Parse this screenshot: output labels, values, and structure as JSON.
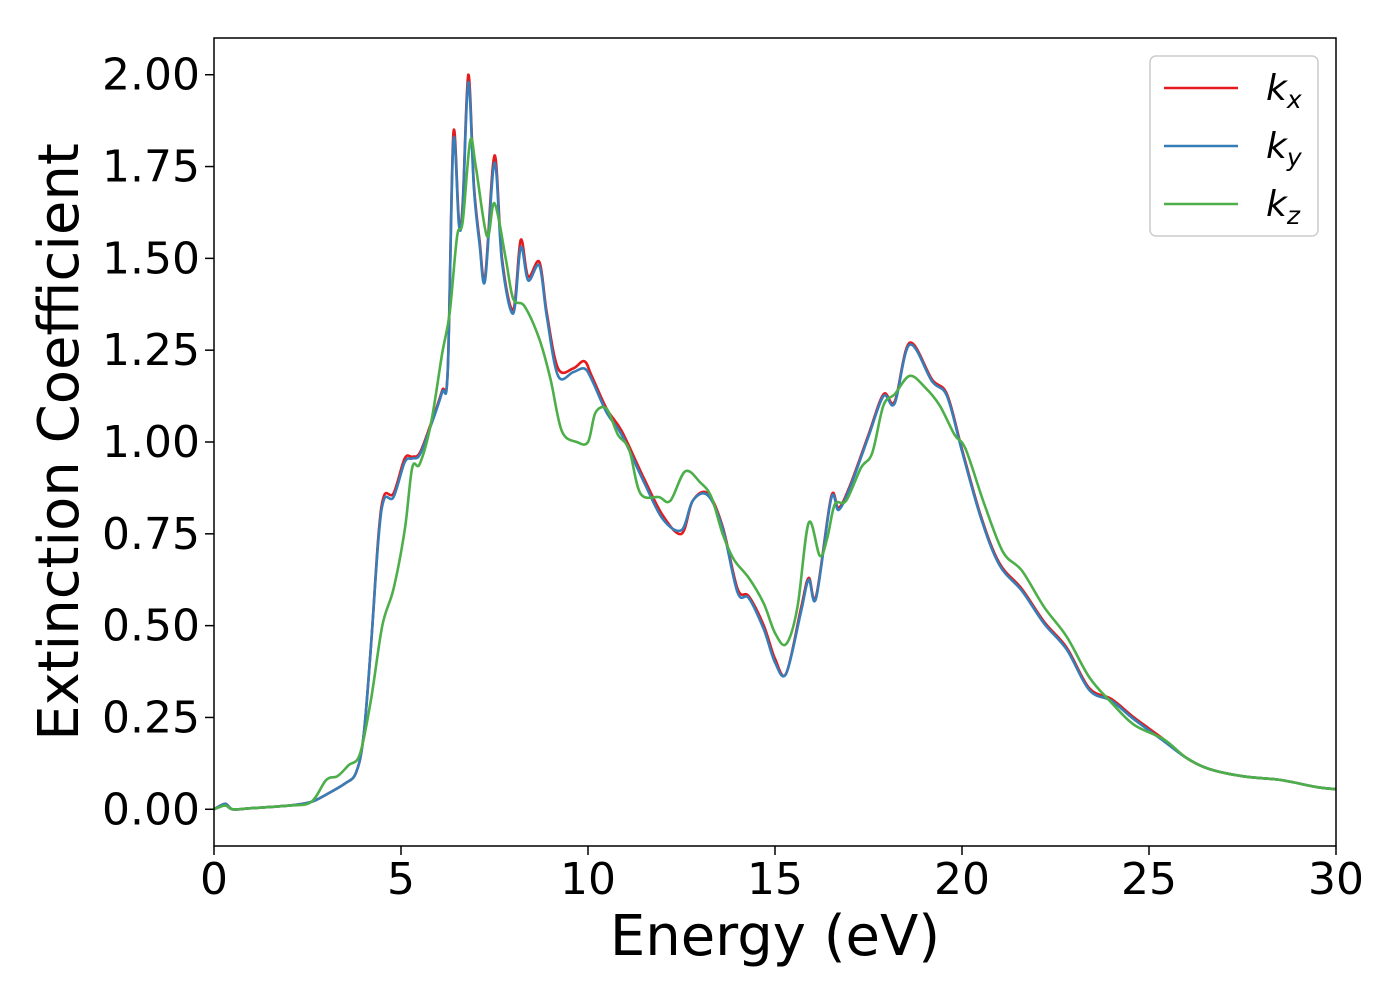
{
  "chart_data": {
    "type": "line",
    "title": "",
    "xlabel": "Energy (eV)",
    "ylabel": "Extinction Coefficient",
    "xlim": [
      0,
      30
    ],
    "ylim": [
      -0.1,
      2.1
    ],
    "xticks": [
      0,
      5,
      10,
      15,
      20,
      25,
      30
    ],
    "xtick_labels": [
      "0",
      "5",
      "10",
      "15",
      "20",
      "25",
      "30"
    ],
    "yticks": [
      0,
      0.25,
      0.5,
      0.75,
      1.0,
      1.25,
      1.5,
      1.75,
      2.0
    ],
    "ytick_labels": [
      "0.00",
      "0.25",
      "0.50",
      "0.75",
      "1.00",
      "1.25",
      "1.50",
      "1.75",
      "2.00"
    ],
    "grid": false,
    "legend_position": "top-right",
    "series": [
      {
        "name": "kx",
        "label_base": "k",
        "label_sub": "x",
        "color": "#e41a1c",
        "points": [
          [
            0,
            0
          ],
          [
            0.3,
            0.015
          ],
          [
            0.5,
            0
          ],
          [
            1,
            0.003
          ],
          [
            2,
            0.01
          ],
          [
            2.6,
            0.02
          ],
          [
            3,
            0.04
          ],
          [
            3.5,
            0.07
          ],
          [
            3.8,
            0.1
          ],
          [
            4.0,
            0.2
          ],
          [
            4.2,
            0.45
          ],
          [
            4.4,
            0.75
          ],
          [
            4.55,
            0.855
          ],
          [
            4.8,
            0.86
          ],
          [
            5.1,
            0.955
          ],
          [
            5.3,
            0.96
          ],
          [
            5.5,
            0.97
          ],
          [
            5.8,
            1.05
          ],
          [
            6.1,
            1.14
          ],
          [
            6.25,
            1.2
          ],
          [
            6.4,
            1.84
          ],
          [
            6.55,
            1.6
          ],
          [
            6.65,
            1.65
          ],
          [
            6.8,
            2.0
          ],
          [
            6.95,
            1.7
          ],
          [
            7.1,
            1.55
          ],
          [
            7.25,
            1.45
          ],
          [
            7.5,
            1.78
          ],
          [
            7.7,
            1.5
          ],
          [
            8.0,
            1.36
          ],
          [
            8.2,
            1.55
          ],
          [
            8.4,
            1.45
          ],
          [
            8.7,
            1.49
          ],
          [
            8.9,
            1.35
          ],
          [
            9.2,
            1.2
          ],
          [
            9.6,
            1.2
          ],
          [
            9.9,
            1.22
          ],
          [
            10.1,
            1.18
          ],
          [
            10.5,
            1.09
          ],
          [
            10.9,
            1.03
          ],
          [
            11.5,
            0.9
          ],
          [
            12.0,
            0.8
          ],
          [
            12.5,
            0.75
          ],
          [
            12.8,
            0.84
          ],
          [
            13.2,
            0.86
          ],
          [
            13.6,
            0.77
          ],
          [
            14.0,
            0.6
          ],
          [
            14.3,
            0.58
          ],
          [
            14.7,
            0.5
          ],
          [
            15.0,
            0.41
          ],
          [
            15.3,
            0.37
          ],
          [
            15.7,
            0.55
          ],
          [
            15.9,
            0.63
          ],
          [
            16.1,
            0.58
          ],
          [
            16.5,
            0.85
          ],
          [
            16.7,
            0.82
          ],
          [
            17.0,
            0.88
          ],
          [
            17.5,
            1.02
          ],
          [
            17.9,
            1.13
          ],
          [
            18.2,
            1.11
          ],
          [
            18.6,
            1.27
          ],
          [
            19.2,
            1.17
          ],
          [
            19.6,
            1.13
          ],
          [
            20.0,
            0.98
          ],
          [
            20.5,
            0.8
          ],
          [
            21.0,
            0.67
          ],
          [
            21.6,
            0.6
          ],
          [
            22.2,
            0.51
          ],
          [
            22.8,
            0.44
          ],
          [
            23.4,
            0.33
          ],
          [
            24.0,
            0.3
          ],
          [
            24.6,
            0.25
          ],
          [
            25.4,
            0.19
          ],
          [
            26.0,
            0.14
          ],
          [
            26.6,
            0.11
          ],
          [
            27.5,
            0.09
          ],
          [
            28.5,
            0.08
          ],
          [
            29.5,
            0.06
          ],
          [
            30,
            0.055
          ]
        ]
      },
      {
        "name": "ky",
        "label_base": "k",
        "label_sub": "y",
        "color": "#377eb8",
        "points": [
          [
            0,
            0
          ],
          [
            0.3,
            0.015
          ],
          [
            0.5,
            0
          ],
          [
            1,
            0.003
          ],
          [
            2,
            0.01
          ],
          [
            2.6,
            0.02
          ],
          [
            3,
            0.04
          ],
          [
            3.5,
            0.07
          ],
          [
            3.8,
            0.1
          ],
          [
            4.0,
            0.2
          ],
          [
            4.2,
            0.45
          ],
          [
            4.4,
            0.74
          ],
          [
            4.55,
            0.845
          ],
          [
            4.8,
            0.85
          ],
          [
            5.1,
            0.945
          ],
          [
            5.3,
            0.955
          ],
          [
            5.5,
            0.965
          ],
          [
            5.8,
            1.045
          ],
          [
            6.1,
            1.135
          ],
          [
            6.25,
            1.195
          ],
          [
            6.4,
            1.82
          ],
          [
            6.55,
            1.59
          ],
          [
            6.65,
            1.64
          ],
          [
            6.8,
            1.98
          ],
          [
            6.95,
            1.69
          ],
          [
            7.1,
            1.54
          ],
          [
            7.25,
            1.44
          ],
          [
            7.5,
            1.76
          ],
          [
            7.7,
            1.49
          ],
          [
            8.0,
            1.35
          ],
          [
            8.2,
            1.53
          ],
          [
            8.4,
            1.44
          ],
          [
            8.7,
            1.48
          ],
          [
            8.9,
            1.34
          ],
          [
            9.2,
            1.18
          ],
          [
            9.6,
            1.19
          ],
          [
            9.9,
            1.2
          ],
          [
            10.1,
            1.17
          ],
          [
            10.5,
            1.08
          ],
          [
            10.9,
            1.02
          ],
          [
            11.5,
            0.89
          ],
          [
            12.0,
            0.79
          ],
          [
            12.5,
            0.76
          ],
          [
            12.8,
            0.84
          ],
          [
            13.2,
            0.855
          ],
          [
            13.6,
            0.765
          ],
          [
            14.0,
            0.59
          ],
          [
            14.3,
            0.575
          ],
          [
            14.7,
            0.49
          ],
          [
            15.0,
            0.4
          ],
          [
            15.3,
            0.37
          ],
          [
            15.7,
            0.54
          ],
          [
            15.9,
            0.625
          ],
          [
            16.1,
            0.575
          ],
          [
            16.5,
            0.845
          ],
          [
            16.7,
            0.815
          ],
          [
            17.0,
            0.875
          ],
          [
            17.5,
            1.015
          ],
          [
            17.9,
            1.125
          ],
          [
            18.2,
            1.105
          ],
          [
            18.6,
            1.265
          ],
          [
            19.2,
            1.165
          ],
          [
            19.6,
            1.125
          ],
          [
            20.0,
            0.975
          ],
          [
            20.5,
            0.795
          ],
          [
            21.0,
            0.665
          ],
          [
            21.6,
            0.595
          ],
          [
            22.2,
            0.505
          ],
          [
            22.8,
            0.435
          ],
          [
            23.4,
            0.325
          ],
          [
            24.0,
            0.295
          ],
          [
            24.6,
            0.245
          ],
          [
            25.4,
            0.185
          ],
          [
            26.0,
            0.14
          ],
          [
            26.6,
            0.11
          ],
          [
            27.5,
            0.09
          ],
          [
            28.5,
            0.08
          ],
          [
            29.5,
            0.06
          ],
          [
            30,
            0.055
          ]
        ]
      },
      {
        "name": "kz",
        "label_base": "k",
        "label_sub": "z",
        "color": "#4daf4a",
        "points": [
          [
            0,
            0
          ],
          [
            0.3,
            0.01
          ],
          [
            0.5,
            0
          ],
          [
            1,
            0.003
          ],
          [
            2,
            0.01
          ],
          [
            2.6,
            0.02
          ],
          [
            3,
            0.08
          ],
          [
            3.3,
            0.09
          ],
          [
            3.6,
            0.12
          ],
          [
            3.9,
            0.15
          ],
          [
            4.2,
            0.3
          ],
          [
            4.5,
            0.5
          ],
          [
            4.8,
            0.6
          ],
          [
            5.1,
            0.76
          ],
          [
            5.3,
            0.93
          ],
          [
            5.5,
            0.94
          ],
          [
            5.8,
            1.05
          ],
          [
            6.1,
            1.24
          ],
          [
            6.3,
            1.35
          ],
          [
            6.5,
            1.56
          ],
          [
            6.65,
            1.6
          ],
          [
            6.85,
            1.82
          ],
          [
            7.0,
            1.75
          ],
          [
            7.3,
            1.56
          ],
          [
            7.5,
            1.65
          ],
          [
            7.8,
            1.5
          ],
          [
            8.0,
            1.39
          ],
          [
            8.3,
            1.37
          ],
          [
            8.7,
            1.28
          ],
          [
            9.0,
            1.17
          ],
          [
            9.3,
            1.03
          ],
          [
            9.7,
            1.0
          ],
          [
            10.0,
            1.0
          ],
          [
            10.2,
            1.08
          ],
          [
            10.5,
            1.09
          ],
          [
            10.8,
            1.02
          ],
          [
            11.1,
            0.98
          ],
          [
            11.4,
            0.86
          ],
          [
            11.9,
            0.85
          ],
          [
            12.2,
            0.84
          ],
          [
            12.6,
            0.92
          ],
          [
            13.0,
            0.89
          ],
          [
            13.3,
            0.85
          ],
          [
            13.6,
            0.75
          ],
          [
            13.9,
            0.68
          ],
          [
            14.3,
            0.63
          ],
          [
            14.7,
            0.56
          ],
          [
            15.0,
            0.48
          ],
          [
            15.3,
            0.45
          ],
          [
            15.6,
            0.55
          ],
          [
            15.9,
            0.78
          ],
          [
            16.2,
            0.69
          ],
          [
            16.4,
            0.74
          ],
          [
            16.6,
            0.83
          ],
          [
            16.9,
            0.84
          ],
          [
            17.3,
            0.93
          ],
          [
            17.6,
            0.97
          ],
          [
            17.9,
            1.1
          ],
          [
            18.2,
            1.13
          ],
          [
            18.6,
            1.18
          ],
          [
            19.0,
            1.15
          ],
          [
            19.4,
            1.1
          ],
          [
            19.8,
            1.02
          ],
          [
            20.1,
            0.98
          ],
          [
            20.6,
            0.83
          ],
          [
            21.1,
            0.7
          ],
          [
            21.6,
            0.65
          ],
          [
            22.2,
            0.55
          ],
          [
            22.8,
            0.47
          ],
          [
            23.4,
            0.36
          ],
          [
            24.0,
            0.29
          ],
          [
            24.6,
            0.23
          ],
          [
            25.4,
            0.19
          ],
          [
            26.0,
            0.14
          ],
          [
            26.6,
            0.11
          ],
          [
            27.5,
            0.09
          ],
          [
            28.5,
            0.08
          ],
          [
            29.5,
            0.06
          ],
          [
            30,
            0.055
          ]
        ]
      }
    ]
  }
}
